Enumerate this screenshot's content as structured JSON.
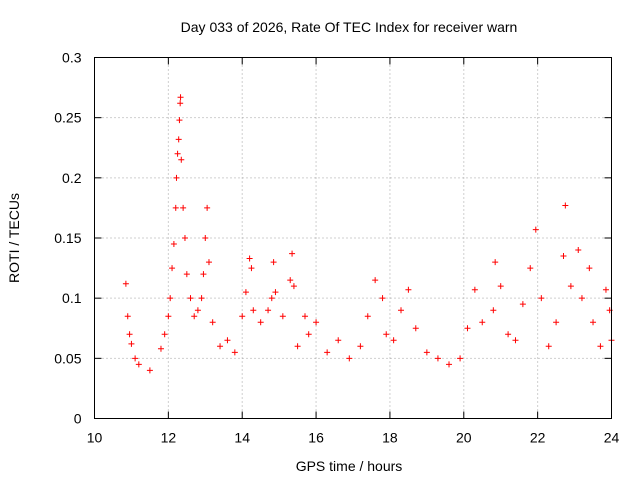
{
  "chart_data": {
    "type": "scatter",
    "title": "Day 033 of 2026, Rate Of TEC Index for receiver warn",
    "xlabel": "GPS time / hours",
    "ylabel": "ROTI / TECUs",
    "xlim": [
      10,
      24
    ],
    "ylim": [
      0,
      0.3
    ],
    "xticks": [
      "10",
      "12",
      "14",
      "16",
      "18",
      "20",
      "22",
      "24"
    ],
    "yticks": [
      "0",
      "0.05",
      "0.1",
      "0.15",
      "0.2",
      "0.25",
      "0.3"
    ],
    "grid": true,
    "marker": "plus",
    "color": "#ff0000",
    "series": [
      {
        "name": "ROTI",
        "note": "dense point cloud from 10.8 h to 24 h; representative sample",
        "points": [
          [
            10.85,
            0.112
          ],
          [
            10.9,
            0.085
          ],
          [
            10.95,
            0.07
          ],
          [
            11.0,
            0.062
          ],
          [
            11.1,
            0.05
          ],
          [
            11.2,
            0.045
          ],
          [
            11.5,
            0.04
          ],
          [
            11.8,
            0.058
          ],
          [
            11.9,
            0.07
          ],
          [
            12.0,
            0.085
          ],
          [
            12.05,
            0.1
          ],
          [
            12.1,
            0.125
          ],
          [
            12.15,
            0.145
          ],
          [
            12.2,
            0.175
          ],
          [
            12.22,
            0.2
          ],
          [
            12.25,
            0.22
          ],
          [
            12.28,
            0.232
          ],
          [
            12.3,
            0.248
          ],
          [
            12.32,
            0.262
          ],
          [
            12.33,
            0.267
          ],
          [
            12.35,
            0.215
          ],
          [
            12.4,
            0.175
          ],
          [
            12.45,
            0.15
          ],
          [
            12.5,
            0.12
          ],
          [
            12.6,
            0.1
          ],
          [
            12.7,
            0.085
          ],
          [
            12.8,
            0.09
          ],
          [
            12.9,
            0.1
          ],
          [
            12.95,
            0.12
          ],
          [
            13.0,
            0.15
          ],
          [
            13.05,
            0.175
          ],
          [
            13.1,
            0.13
          ],
          [
            13.2,
            0.08
          ],
          [
            13.4,
            0.06
          ],
          [
            13.6,
            0.065
          ],
          [
            13.8,
            0.055
          ],
          [
            14.0,
            0.085
          ],
          [
            14.1,
            0.105
          ],
          [
            14.2,
            0.133
          ],
          [
            14.25,
            0.125
          ],
          [
            14.3,
            0.09
          ],
          [
            14.5,
            0.08
          ],
          [
            14.7,
            0.09
          ],
          [
            14.8,
            0.1
          ],
          [
            14.85,
            0.13
          ],
          [
            14.9,
            0.105
          ],
          [
            15.1,
            0.085
          ],
          [
            15.3,
            0.115
          ],
          [
            15.35,
            0.137
          ],
          [
            15.4,
            0.11
          ],
          [
            15.5,
            0.06
          ],
          [
            15.7,
            0.085
          ],
          [
            15.8,
            0.07
          ],
          [
            16.0,
            0.08
          ],
          [
            16.3,
            0.055
          ],
          [
            16.6,
            0.065
          ],
          [
            16.9,
            0.05
          ],
          [
            17.2,
            0.06
          ],
          [
            17.4,
            0.085
          ],
          [
            17.6,
            0.115
          ],
          [
            17.8,
            0.1
          ],
          [
            17.9,
            0.07
          ],
          [
            18.1,
            0.065
          ],
          [
            18.3,
            0.09
          ],
          [
            18.5,
            0.107
          ],
          [
            18.7,
            0.075
          ],
          [
            19.0,
            0.055
          ],
          [
            19.3,
            0.05
          ],
          [
            19.6,
            0.045
          ],
          [
            19.9,
            0.05
          ],
          [
            20.1,
            0.075
          ],
          [
            20.3,
            0.107
          ],
          [
            20.5,
            0.08
          ],
          [
            20.8,
            0.09
          ],
          [
            20.85,
            0.13
          ],
          [
            21.0,
            0.11
          ],
          [
            21.2,
            0.07
          ],
          [
            21.4,
            0.065
          ],
          [
            21.6,
            0.095
          ],
          [
            21.8,
            0.125
          ],
          [
            21.95,
            0.157
          ],
          [
            22.1,
            0.1
          ],
          [
            22.3,
            0.06
          ],
          [
            22.5,
            0.08
          ],
          [
            22.7,
            0.135
          ],
          [
            22.75,
            0.177
          ],
          [
            22.9,
            0.11
          ],
          [
            23.1,
            0.14
          ],
          [
            23.2,
            0.1
          ],
          [
            23.4,
            0.125
          ],
          [
            23.5,
            0.08
          ],
          [
            23.7,
            0.06
          ],
          [
            23.85,
            0.107
          ],
          [
            23.95,
            0.09
          ],
          [
            24.0,
            0.065
          ]
        ]
      }
    ]
  }
}
